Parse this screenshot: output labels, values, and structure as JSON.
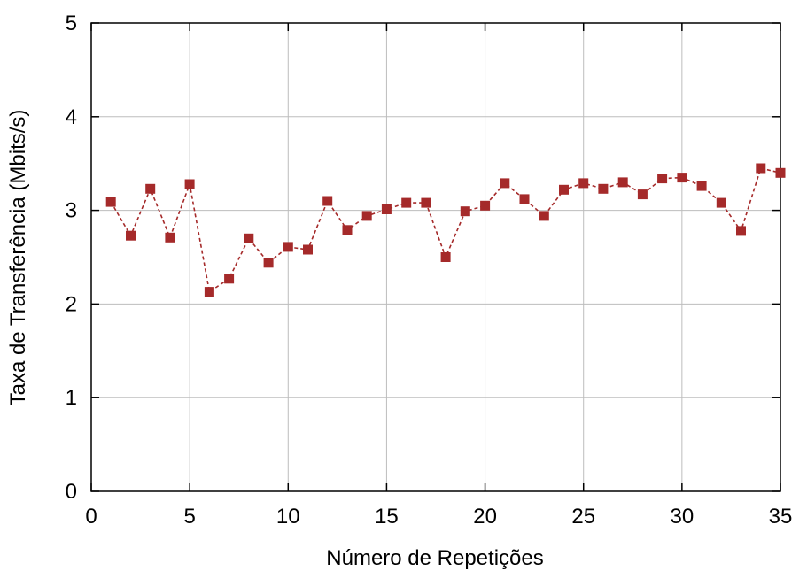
{
  "chart_data": {
    "type": "line",
    "title": "",
    "xlabel": "Número de Repetições",
    "ylabel": "Taxa de Transferência (Mbits/s)",
    "xlim": [
      0,
      35
    ],
    "ylim": [
      0,
      5
    ],
    "x_ticks": [
      0,
      5,
      10,
      15,
      20,
      25,
      30,
      35
    ],
    "y_ticks": [
      0,
      1,
      2,
      3,
      4,
      5
    ],
    "grid": true,
    "legend": "none",
    "series": [
      {
        "color": "#a52a2a",
        "marker": "square",
        "line_style": "dashed",
        "x": [
          1,
          2,
          3,
          4,
          5,
          6,
          7,
          8,
          9,
          10,
          11,
          12,
          13,
          14,
          15,
          16,
          17,
          18,
          19,
          20,
          21,
          22,
          23,
          24,
          25,
          26,
          27,
          28,
          29,
          30,
          31,
          32,
          33,
          34,
          35
        ],
        "values": [
          3.09,
          2.73,
          3.23,
          2.71,
          3.28,
          2.13,
          2.27,
          2.7,
          2.44,
          2.61,
          2.58,
          3.1,
          2.79,
          2.94,
          3.01,
          3.08,
          3.08,
          2.5,
          2.99,
          3.05,
          3.29,
          3.12,
          2.94,
          3.22,
          3.29,
          3.23,
          3.3,
          3.17,
          3.34,
          3.35,
          3.26,
          3.08,
          2.78,
          3.45,
          3.4
        ]
      }
    ]
  }
}
